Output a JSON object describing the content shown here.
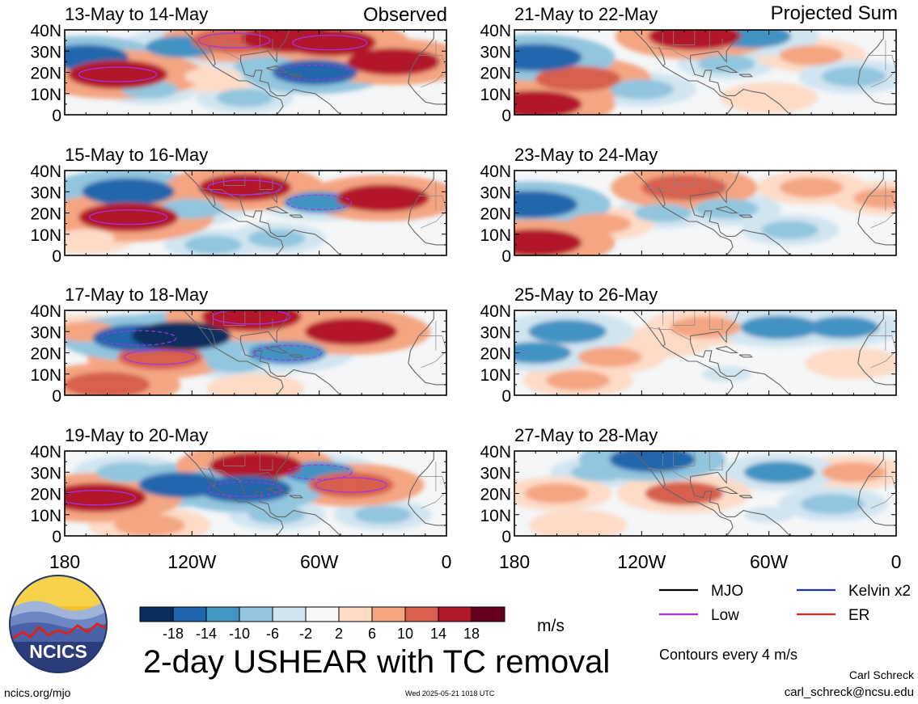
{
  "figure": {
    "title": "2-day USHEAR with TC removal",
    "left_column_label": "Observed",
    "right_column_label": "Projected Sum",
    "contour_note": "Contours every 4 m/s",
    "author": "Carl Schreck",
    "email": "carl_schreck@ncsu.edu",
    "url": "ncics.org/mjo",
    "timestamp": "Wed 2025-05-21 1018 UTC",
    "logo_text": "NCICS"
  },
  "colorbar": {
    "unit": "m/s",
    "ticks": [
      "-18",
      "-14",
      "-10",
      "-6",
      "-2",
      "2",
      "6",
      "10",
      "14",
      "18"
    ],
    "colors": [
      "#0a2f5e",
      "#2166ac",
      "#4393c3",
      "#92c5de",
      "#d1e5f0",
      "#f7f7f7",
      "#fddbc7",
      "#f4a582",
      "#d6604d",
      "#b2182b",
      "#67001f"
    ]
  },
  "legend": {
    "items": [
      {
        "label": "MJO",
        "color": "#000000"
      },
      {
        "label": "Kelvin x2",
        "color": "#1f2fbf"
      },
      {
        "label": "Low",
        "color": "#a335e8"
      },
      {
        "label": "ER",
        "color": "#d62a1e"
      }
    ]
  },
  "chart_data": {
    "type": "heatmap",
    "variable": "2-day USHEAR with TC removal",
    "unit": "m/s",
    "x_tick_labels": [
      "180",
      "120W",
      "60W",
      "0"
    ],
    "y_tick_labels": [
      "40N",
      "30N",
      "20N",
      "10N",
      "0"
    ],
    "xlim": [
      -180,
      0
    ],
    "ylim": [
      0,
      40
    ],
    "color_levels": [
      -18,
      -14,
      -10,
      -6,
      -2,
      2,
      6,
      10,
      14,
      18
    ],
    "contour_interval": 4,
    "panels": [
      {
        "title": "13-May to 14-May",
        "column": "Observed",
        "features": [
          {
            "lon": -155,
            "lat": 19,
            "value": 18
          },
          {
            "lon": -170,
            "lat": 27,
            "value": -14
          },
          {
            "lon": -100,
            "lat": 35,
            "value": 14
          },
          {
            "lon": -73,
            "lat": 36,
            "value": 18
          },
          {
            "lon": -55,
            "lat": 34,
            "value": 16
          },
          {
            "lon": -25,
            "lat": 25,
            "value": 16
          },
          {
            "lon": -62,
            "lat": 20,
            "value": -14
          },
          {
            "lon": -125,
            "lat": 32,
            "value": -10
          },
          {
            "lon": -85,
            "lat": 23,
            "value": -8
          },
          {
            "lon": -140,
            "lat": 12,
            "value": -6
          },
          {
            "lon": -95,
            "lat": 8,
            "value": -6
          },
          {
            "lon": -110,
            "lat": 18,
            "value": 6
          }
        ]
      },
      {
        "title": "15-May to 16-May",
        "column": "Observed",
        "features": [
          {
            "lon": -150,
            "lat": 18,
            "value": 18
          },
          {
            "lon": -150,
            "lat": 30,
            "value": -16
          },
          {
            "lon": -95,
            "lat": 32,
            "value": 16
          },
          {
            "lon": -30,
            "lat": 27,
            "value": 16
          },
          {
            "lon": -60,
            "lat": 25,
            "value": -10
          },
          {
            "lon": -120,
            "lat": 22,
            "value": -8
          },
          {
            "lon": -80,
            "lat": 8,
            "value": -6
          },
          {
            "lon": -170,
            "lat": 8,
            "value": 6
          },
          {
            "lon": -110,
            "lat": 5,
            "value": -6
          }
        ]
      },
      {
        "title": "17-May to 18-May",
        "column": "Observed",
        "features": [
          {
            "lon": -145,
            "lat": 27,
            "value": -16
          },
          {
            "lon": -125,
            "lat": 28,
            "value": -18
          },
          {
            "lon": -92,
            "lat": 37,
            "value": 18
          },
          {
            "lon": -45,
            "lat": 30,
            "value": 16
          },
          {
            "lon": -135,
            "lat": 18,
            "value": 14
          },
          {
            "lon": -160,
            "lat": 5,
            "value": 14
          },
          {
            "lon": -75,
            "lat": 20,
            "value": -12
          },
          {
            "lon": -170,
            "lat": 30,
            "value": 8
          },
          {
            "lon": -100,
            "lat": 15,
            "value": -6
          },
          {
            "lon": -90,
            "lat": 3,
            "value": 6
          }
        ]
      },
      {
        "title": "19-May to 20-May",
        "column": "Observed",
        "features": [
          {
            "lon": -165,
            "lat": 18,
            "value": 18
          },
          {
            "lon": -90,
            "lat": 33,
            "value": 16
          },
          {
            "lon": -95,
            "lat": 22,
            "value": -16
          },
          {
            "lon": -125,
            "lat": 24,
            "value": -14
          },
          {
            "lon": -45,
            "lat": 24,
            "value": 14
          },
          {
            "lon": -150,
            "lat": 30,
            "value": -8
          },
          {
            "lon": -60,
            "lat": 30,
            "value": -10
          },
          {
            "lon": -140,
            "lat": 5,
            "value": 10
          },
          {
            "lon": -80,
            "lat": 10,
            "value": -6
          },
          {
            "lon": -30,
            "lat": 10,
            "value": -6
          }
        ]
      },
      {
        "title": "21-May to 22-May",
        "column": "Projected Sum",
        "features": [
          {
            "lon": -170,
            "lat": 27,
            "value": -16
          },
          {
            "lon": -150,
            "lat": 17,
            "value": 14
          },
          {
            "lon": -170,
            "lat": 5,
            "value": 16
          },
          {
            "lon": -95,
            "lat": 37,
            "value": 16
          },
          {
            "lon": -68,
            "lat": 37,
            "value": -12
          },
          {
            "lon": -120,
            "lat": 12,
            "value": -8
          },
          {
            "lon": -80,
            "lat": 24,
            "value": -6
          },
          {
            "lon": -40,
            "lat": 28,
            "value": 8
          },
          {
            "lon": -20,
            "lat": 18,
            "value": -8
          },
          {
            "lon": -60,
            "lat": 8,
            "value": 6
          }
        ]
      },
      {
        "title": "23-May to 24-May",
        "column": "Projected Sum",
        "features": [
          {
            "lon": -172,
            "lat": 24,
            "value": -16
          },
          {
            "lon": -170,
            "lat": 6,
            "value": 16
          },
          {
            "lon": -100,
            "lat": 32,
            "value": 14
          },
          {
            "lon": -140,
            "lat": 15,
            "value": 8
          },
          {
            "lon": -80,
            "lat": 22,
            "value": -8
          },
          {
            "lon": -110,
            "lat": 20,
            "value": -6
          },
          {
            "lon": -40,
            "lat": 32,
            "value": 8
          },
          {
            "lon": -50,
            "lat": 12,
            "value": -6
          },
          {
            "lon": -5,
            "lat": 27,
            "value": 8
          }
        ]
      },
      {
        "title": "25-May to 26-May",
        "column": "Projected Sum",
        "features": [
          {
            "lon": -155,
            "lat": 30,
            "value": -12
          },
          {
            "lon": -170,
            "lat": 20,
            "value": -10
          },
          {
            "lon": -135,
            "lat": 18,
            "value": 8
          },
          {
            "lon": -90,
            "lat": 32,
            "value": 10
          },
          {
            "lon": -55,
            "lat": 32,
            "value": -12
          },
          {
            "lon": -25,
            "lat": 32,
            "value": -10
          },
          {
            "lon": -110,
            "lat": 25,
            "value": 6
          },
          {
            "lon": -150,
            "lat": 7,
            "value": 8
          },
          {
            "lon": -80,
            "lat": 10,
            "value": -4
          },
          {
            "lon": -20,
            "lat": 15,
            "value": 6
          }
        ]
      },
      {
        "title": "27-May to 28-May",
        "column": "Projected Sum",
        "features": [
          {
            "lon": -115,
            "lat": 36,
            "value": -14
          },
          {
            "lon": -100,
            "lat": 20,
            "value": 12
          },
          {
            "lon": -160,
            "lat": 20,
            "value": 8
          },
          {
            "lon": -55,
            "lat": 30,
            "value": -10
          },
          {
            "lon": -20,
            "lat": 30,
            "value": 8
          },
          {
            "lon": -30,
            "lat": 15,
            "value": -8
          },
          {
            "lon": -140,
            "lat": 30,
            "value": -6
          },
          {
            "lon": -150,
            "lat": 5,
            "value": 6
          },
          {
            "lon": -60,
            "lat": 10,
            "value": -4
          }
        ]
      }
    ]
  }
}
